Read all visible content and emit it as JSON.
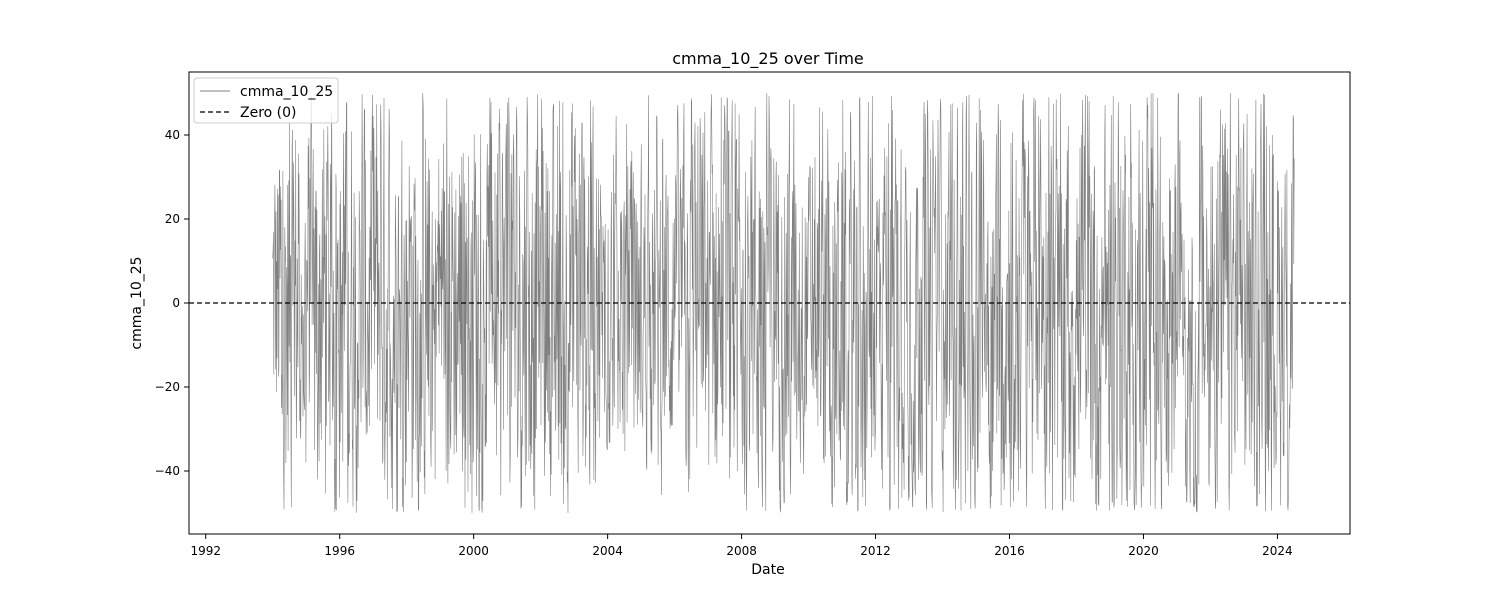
{
  "chart_data": {
    "type": "line",
    "title": "cmma_10_25 over Time",
    "xlabel": "Date",
    "ylabel": "cmma_10_25",
    "x_ticks": [
      "1992",
      "1996",
      "2000",
      "2004",
      "2008",
      "2012",
      "2016",
      "2020",
      "2024"
    ],
    "y_ticks": [
      "−40",
      "−20",
      "0",
      "20",
      "40"
    ],
    "xlim": [
      "1991-07",
      "2026-03"
    ],
    "ylim": [
      -55,
      55
    ],
    "grid": false,
    "legend": {
      "placement": "top-left",
      "entries": [
        "cmma_10_25",
        "Zero (0)"
      ]
    },
    "series": [
      {
        "name": "cmma_10_25",
        "color": "#808080",
        "style": "solid",
        "x_range": [
          "1994-01",
          "2024-08"
        ],
        "note_values_range": [
          -50,
          50
        ],
        "x": [
          "1994-01",
          "1994-07",
          "1995-01",
          "1995-07",
          "1996-01",
          "1996-07",
          "1997-01",
          "1997-07",
          "1998-01",
          "1998-07",
          "1999-01",
          "1999-07",
          "2000-01",
          "2000-07",
          "2001-01",
          "2001-07",
          "2002-01",
          "2002-07",
          "2003-01",
          "2003-07",
          "2004-01",
          "2004-07",
          "2005-01",
          "2005-07",
          "2006-01",
          "2006-07",
          "2007-01",
          "2007-07",
          "2008-01",
          "2008-07",
          "2009-01",
          "2009-07",
          "2010-01",
          "2010-07",
          "2011-01",
          "2011-07",
          "2012-01",
          "2012-07",
          "2013-01",
          "2013-07",
          "2014-01",
          "2014-07",
          "2015-01",
          "2015-07",
          "2016-01",
          "2016-07",
          "2017-01",
          "2017-07",
          "2018-01",
          "2018-07",
          "2019-01",
          "2019-07",
          "2020-01",
          "2020-07",
          "2021-01",
          "2021-07",
          "2022-01",
          "2022-07",
          "2023-01",
          "2023-07",
          "2024-01",
          "2024-07"
        ],
        "values": [
          36,
          -50,
          42,
          -48,
          48,
          -44,
          46,
          -48,
          44,
          -50,
          42,
          -46,
          47,
          -44,
          48,
          -47,
          46,
          -50,
          47,
          -45,
          31,
          -40,
          33,
          -42,
          34,
          -46,
          38,
          -49,
          45,
          -50,
          42,
          -46,
          30,
          -47,
          44,
          -50,
          45,
          -46,
          40,
          -48,
          44,
          -47,
          48,
          -50,
          46,
          -47,
          44,
          -48,
          46,
          -50,
          48,
          -50,
          50,
          -49,
          44,
          -50,
          48,
          -45,
          46,
          -44,
          44,
          -44
        ]
      },
      {
        "name": "Zero (0)",
        "color": "#000000",
        "style": "dashed",
        "value": 0
      }
    ]
  }
}
